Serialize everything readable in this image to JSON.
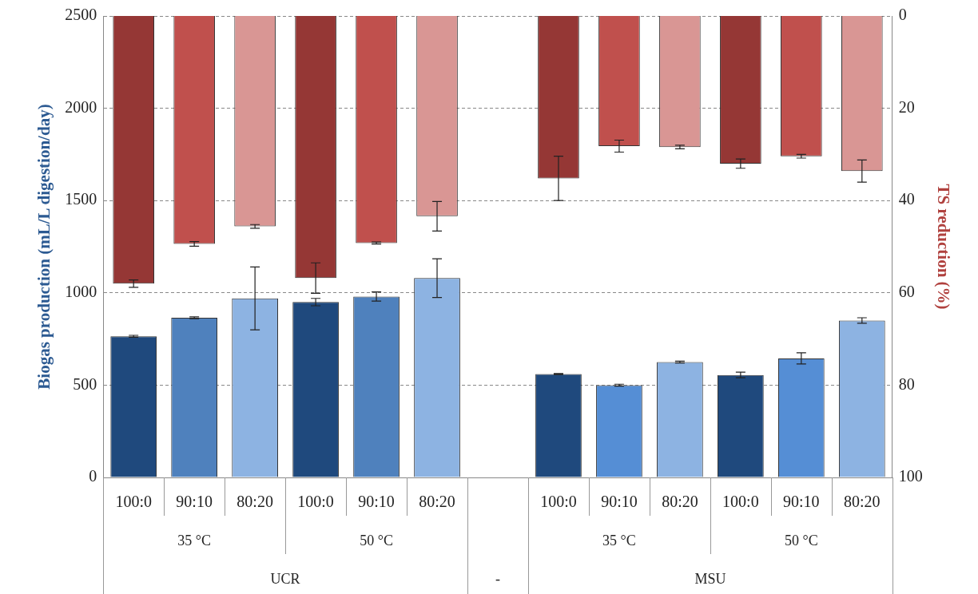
{
  "chart_data": {
    "type": "bar",
    "ylabel": "Biogas production (mL/L digestion/day)",
    "y2label": "TS reduction (%)",
    "categories": [
      "100:0",
      "90:10",
      "80:20",
      "100:0",
      "90:10",
      "80:20",
      null,
      "100:0",
      "90:10",
      "80:20",
      "100:0",
      "90:10",
      "80:20"
    ],
    "annotations": [
      "35 °C",
      "50 °C",
      "35 °C",
      "50 °C",
      "UCR",
      "-",
      "MSU"
    ],
    "ylim": [
      0,
      2500
    ],
    "yticks": [
      0,
      500,
      1000,
      1500,
      2000,
      2500
    ],
    "y2lim": [
      100,
      0
    ],
    "y2ticks": [
      0,
      20,
      40,
      60,
      80,
      100
    ],
    "grid": "y",
    "series": [
      {
        "axis": "y",
        "colors": [
          "#1f497d",
          "#4f81bd",
          "#8db3e2",
          "#1f497d",
          "#4f81bd",
          "#8db3e2",
          null,
          "#1f497d",
          "#558ed5",
          "#8db3e2",
          "#1f497d",
          "#558ed5",
          "#8db3e2"
        ],
        "values": [
          765,
          865,
          970,
          950,
          980,
          1080,
          null,
          560,
          500,
          625,
          555,
          645,
          850
        ],
        "errors": [
          5,
          5,
          170,
          20,
          25,
          105,
          null,
          3,
          5,
          5,
          15,
          30,
          15
        ]
      },
      {
        "axis": "y2",
        "colors": [
          "#953735",
          "#c0504d",
          "#d99694",
          "#953735",
          "#c0504d",
          "#d99694",
          null,
          "#953735",
          "#c0504d",
          "#d99694",
          "#953735",
          "#c0504d",
          "#d99694"
        ],
        "values": [
          58,
          49.4,
          45.6,
          56.8,
          49.2,
          43.4,
          null,
          35.2,
          28.2,
          28.4,
          32,
          30.4,
          33.6
        ],
        "errors": [
          0.8,
          0.5,
          0.4,
          3.3,
          0.2,
          3.2,
          null,
          4.8,
          1.3,
          0.4,
          1,
          0.4,
          2.4
        ]
      }
    ]
  }
}
